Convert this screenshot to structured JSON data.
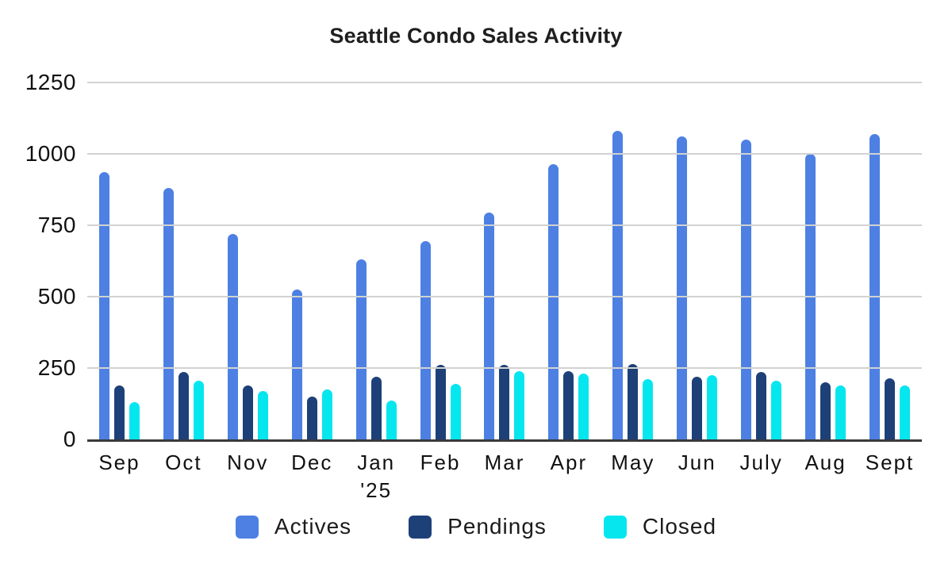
{
  "title": "Seattle Condo Sales Activity",
  "colors": {
    "actives": "#4d80e2",
    "pendings": "#1e4078",
    "closed": "#06e6ef",
    "gridline": "#d2d2d2",
    "axis": "#3a3a3a",
    "text": "#1b1b1b"
  },
  "chart_data": {
    "type": "bar",
    "title": "Seattle Condo Sales Activity",
    "categories": [
      "Sep",
      "Oct",
      "Nov",
      "Dec",
      "Jan\n'25",
      "Feb",
      "Mar",
      "Apr",
      "May",
      "Jun",
      "July",
      "Aug",
      "Sept"
    ],
    "series": [
      {
        "name": "Actives",
        "color": "#4d80e2",
        "values": [
          935,
          880,
          720,
          525,
          630,
          695,
          795,
          965,
          1080,
          1060,
          1050,
          1000,
          1070
        ]
      },
      {
        "name": "Pendings",
        "color": "#1e4078",
        "values": [
          190,
          235,
          190,
          150,
          220,
          260,
          260,
          240,
          265,
          220,
          235,
          200,
          215
        ]
      },
      {
        "name": "Closed",
        "color": "#06e6ef",
        "values": [
          130,
          205,
          170,
          175,
          135,
          195,
          240,
          230,
          210,
          225,
          205,
          190,
          190
        ]
      }
    ],
    "xlabel": "",
    "ylabel": "",
    "ylim": [
      0,
      1250
    ],
    "yticks": [
      0,
      250,
      500,
      750,
      1000,
      1250
    ],
    "grid": true,
    "legend_position": "bottom"
  }
}
